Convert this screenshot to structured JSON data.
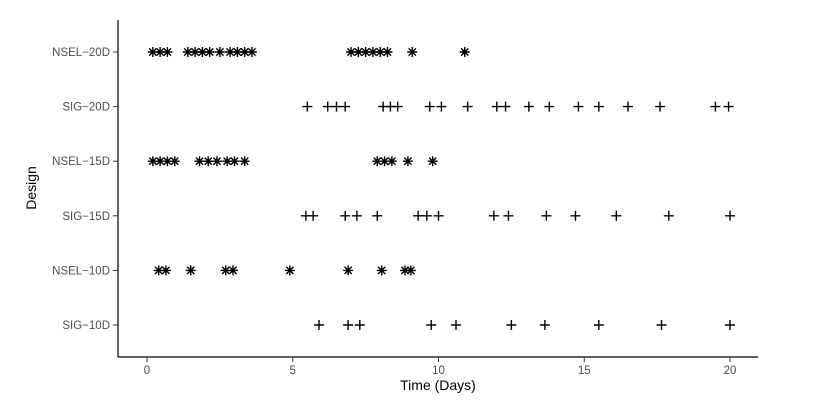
{
  "chart_data": {
    "type": "scatter",
    "title": "",
    "xlabel": "Time (Days)",
    "ylabel": "Design",
    "xlim": [
      -1,
      21
    ],
    "xticks": [
      0,
      5,
      10,
      15,
      20
    ],
    "grid": false,
    "legend": "none",
    "categories": [
      "SIG−10D",
      "NSEL−10D",
      "SIG−15D",
      "NSEL−15D",
      "SIG−20D",
      "NSEL−20D"
    ],
    "series": [
      {
        "category": "NSEL−20D",
        "marker": "asterisk",
        "x": [
          0.2,
          0.45,
          0.7,
          1.4,
          1.65,
          1.9,
          2.15,
          2.5,
          2.85,
          3.1,
          3.35,
          3.6,
          7.0,
          7.25,
          7.5,
          7.75,
          8.0,
          8.25,
          9.1,
          10.9
        ]
      },
      {
        "category": "SIG−20D",
        "marker": "plus",
        "x": [
          5.5,
          6.2,
          6.5,
          6.8,
          8.1,
          8.35,
          8.6,
          9.7,
          10.1,
          11.0,
          12.0,
          12.3,
          13.1,
          13.8,
          14.8,
          15.5,
          16.5,
          17.6,
          19.5,
          19.95
        ]
      },
      {
        "category": "NSEL−15D",
        "marker": "asterisk",
        "x": [
          0.2,
          0.45,
          0.7,
          0.95,
          1.8,
          2.1,
          2.4,
          2.75,
          3.0,
          3.35,
          7.9,
          8.15,
          8.4,
          8.95,
          9.8
        ]
      },
      {
        "category": "SIG−15D",
        "marker": "plus",
        "x": [
          5.45,
          5.7,
          6.8,
          7.2,
          7.9,
          9.3,
          9.6,
          10.0,
          11.9,
          12.4,
          13.7,
          14.7,
          16.1,
          17.9,
          20.0
        ]
      },
      {
        "category": "NSEL−10D",
        "marker": "asterisk",
        "x": [
          0.4,
          0.65,
          1.5,
          2.7,
          2.95,
          4.9,
          6.9,
          8.05,
          8.85,
          9.05
        ]
      },
      {
        "category": "SIG−10D",
        "marker": "plus",
        "x": [
          5.9,
          6.9,
          7.3,
          9.75,
          10.6,
          12.5,
          13.65,
          15.5,
          17.65,
          20.0
        ]
      }
    ],
    "colors": {
      "marks": "#000000",
      "axis": "#000000",
      "tick_labels": "#4d4d4d"
    }
  }
}
